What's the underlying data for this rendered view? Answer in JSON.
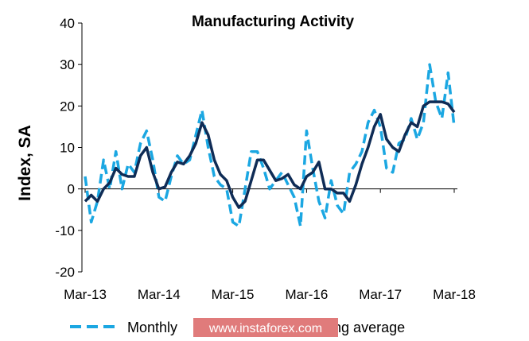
{
  "chart_data": {
    "type": "line",
    "title": "Manufacturing Activity",
    "ylabel": "Index, SA",
    "xlabel": "",
    "ylim": [
      -20,
      40
    ],
    "yticks": [
      -20,
      -10,
      0,
      10,
      20,
      30,
      40
    ],
    "x_start": "Mar-13",
    "x_ticks": [
      "Mar-13",
      "Mar-14",
      "Mar-15",
      "Mar-16",
      "Mar-17",
      "Mar-18"
    ],
    "grid": false,
    "legend_position": "bottom",
    "series": [
      {
        "name": "Monthly",
        "style": "dashed",
        "color": "#1ba7e2",
        "values": [
          3,
          -8,
          -3,
          7,
          0,
          9,
          0,
          6,
          4,
          11,
          14,
          7,
          -2,
          -3,
          3,
          8,
          6,
          7,
          13,
          19,
          10,
          3,
          1,
          0,
          -8,
          -9,
          0,
          9,
          9,
          5,
          0,
          2,
          4,
          1,
          -2,
          -9,
          14,
          5,
          -3,
          -7,
          2,
          -4,
          -6,
          4,
          6,
          9,
          16,
          19,
          15,
          5,
          4,
          11,
          12,
          17,
          12,
          16,
          30,
          21,
          17,
          28,
          15
        ]
      },
      {
        "name": "3-month moving average",
        "style": "solid",
        "color": "#0f2c56",
        "values": [
          -3,
          -1.5,
          -3,
          0,
          1.5,
          5,
          3.5,
          3,
          3,
          8,
          10,
          4,
          0,
          0.5,
          4,
          6.5,
          6,
          8,
          11,
          16,
          13,
          7,
          3.5,
          2,
          -2,
          -4.5,
          -3,
          2,
          7,
          7,
          4.5,
          2,
          2.5,
          3.5,
          1,
          0,
          3,
          4,
          6.5,
          0,
          0,
          -1,
          -1,
          -3,
          1,
          6,
          10,
          15,
          18,
          12,
          10,
          9,
          13,
          16,
          15,
          20,
          21,
          21,
          21,
          20.5,
          18.5
        ]
      }
    ]
  },
  "watermark": {
    "text": "www.instaforex.com",
    "color": "#e07b7b"
  }
}
